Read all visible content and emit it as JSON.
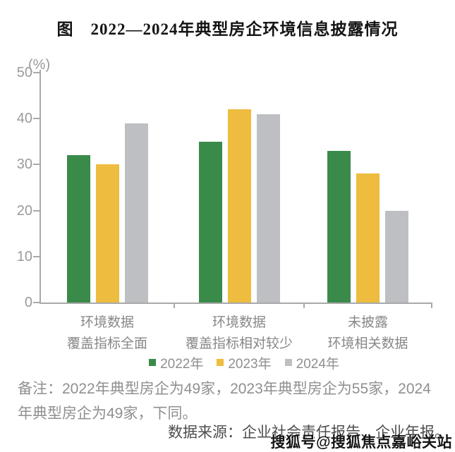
{
  "title": "图　2022—2024年典型房企环境信息披露情况",
  "chart_data": {
    "type": "bar",
    "title": "图　2022—2024年典型房企环境信息披露情况",
    "unit_label": "(%)",
    "categories": [
      [
        "环境数据",
        "覆盖指标全面"
      ],
      [
        "环境数据",
        "覆盖指标相对较少"
      ],
      [
        "未披露",
        "环境相关数据"
      ]
    ],
    "series": [
      {
        "name": "2022年",
        "color": "#3a8a4a",
        "values": [
          32,
          35,
          33
        ]
      },
      {
        "name": "2023年",
        "color": "#eebc3e",
        "values": [
          30,
          42,
          28
        ]
      },
      {
        "name": "2024年",
        "color": "#bdbfc2",
        "values": [
          39,
          41,
          20
        ]
      }
    ],
    "ylim": [
      0,
      50
    ],
    "ytick_step": 10,
    "grid": false,
    "legend_position": "bottom"
  },
  "note": {
    "line1": "备注：2022年典型房企为49家，2023年典型房企为55家，2024",
    "line2": "年典型房企为49家，下同。"
  },
  "source": "数据来源：企业社会责任报告、企业年报。",
  "watermark": "搜狐号@搜狐焦点嘉峪关站",
  "colors": {
    "series_2022": "#3a8a4a",
    "series_2023": "#eebc3e",
    "series_2024": "#bdbfc2",
    "axis": "#a9a9a9",
    "tick_text": "#9b9b9b",
    "category_text": "#878787",
    "note_text": "#8f8f8f",
    "source_text": "#4d4d4d",
    "watermark_text": "#151515"
  }
}
